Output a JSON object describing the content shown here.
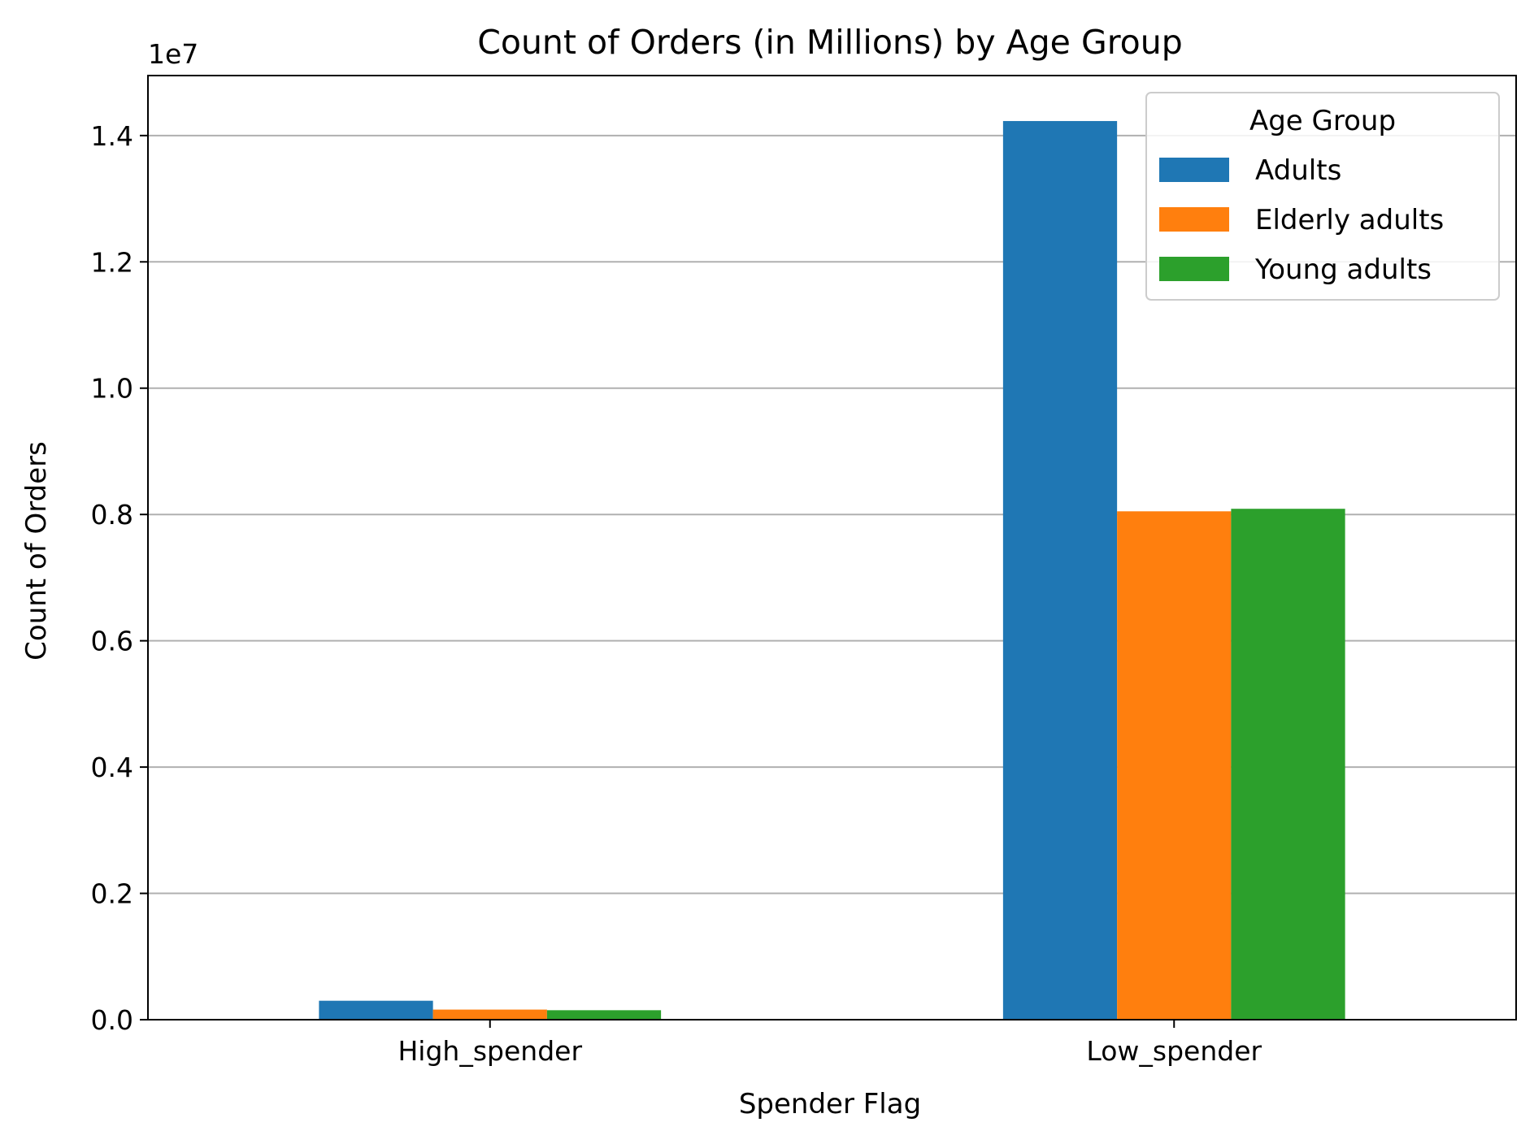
{
  "chart_data": {
    "type": "bar",
    "title": "Count of Orders (in Millions) by Age Group",
    "xlabel": "Spender Flag",
    "ylabel": "Count of Orders",
    "y_multiplier_label": "1e7",
    "categories": [
      "High_spender",
      "Low_spender"
    ],
    "series": [
      {
        "name": "Adults",
        "color": "#1f77b4",
        "values": [
          300000,
          14230000
        ]
      },
      {
        "name": "Elderly adults",
        "color": "#ff7f0e",
        "values": [
          160000,
          8050000
        ]
      },
      {
        "name": "Young adults",
        "color": "#2ca02c",
        "values": [
          150000,
          8090000
        ]
      }
    ],
    "ylim": [
      0,
      14950000
    ],
    "yticks": [
      {
        "value": 0,
        "label": "0.0"
      },
      {
        "value": 2000000,
        "label": "0.2"
      },
      {
        "value": 4000000,
        "label": "0.4"
      },
      {
        "value": 6000000,
        "label": "0.6"
      },
      {
        "value": 8000000,
        "label": "0.8"
      },
      {
        "value": 10000000,
        "label": "1.0"
      },
      {
        "value": 12000000,
        "label": "1.2"
      },
      {
        "value": 14000000,
        "label": "1.4"
      }
    ],
    "grid": "y",
    "legend": {
      "title": "Age Group",
      "placement": "top-right"
    }
  }
}
